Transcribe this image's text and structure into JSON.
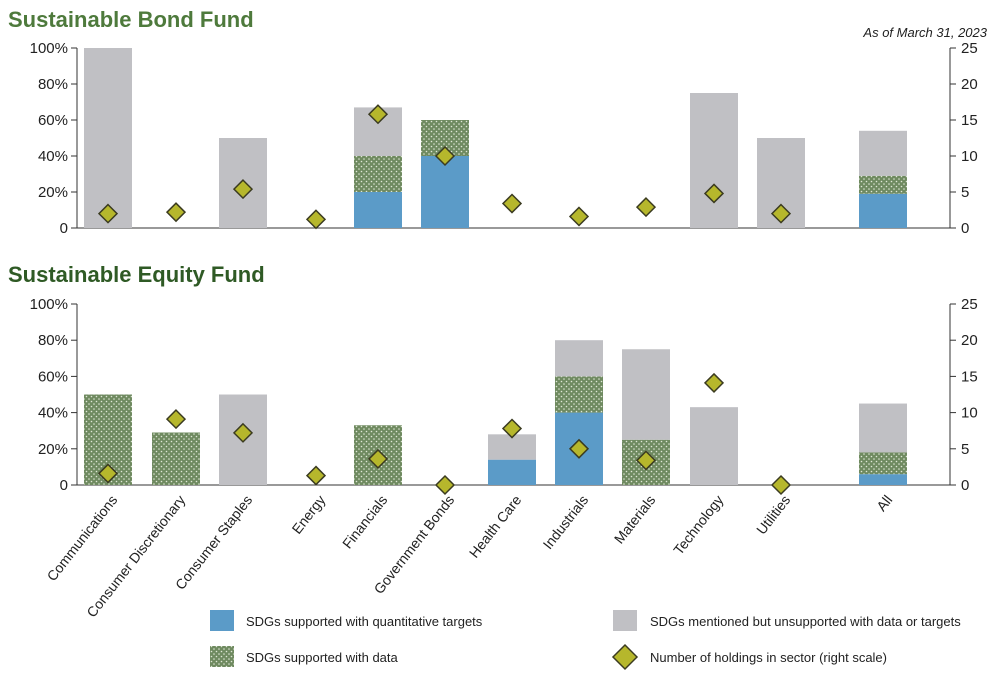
{
  "as_of": "As of March 31, 2023",
  "colors": {
    "quantitative": "#5b9bc8",
    "data": "#6f8a60",
    "data_dots": "#dfe7d6",
    "mentioned": "#c0c0c4",
    "marker": "#b6b72c",
    "marker_stroke": "#3b3b20",
    "bond_title": "#4e7a3c",
    "equity_title": "#2f5a25"
  },
  "categories": [
    "Communications",
    "Consumer Discretionary",
    "Consumer Staples",
    "Energy",
    "Financials",
    "Government Bonds",
    "Health Care",
    "Industrials",
    "Materials",
    "Technology",
    "Utilities",
    "All"
  ],
  "legend": {
    "quantitative": "SDGs supported with quantitative targets",
    "data": "SDGs supported with data",
    "mentioned": "SDGs mentioned but unsupported with data or targets",
    "holdings": "Number of holdings in sector (right scale)"
  },
  "chart_data": [
    {
      "type": "bar",
      "title": "Sustainable Bond Fund",
      "stacked": true,
      "left_axis": {
        "ticks": [
          "0",
          "20%",
          "40%",
          "60%",
          "80%",
          "100%"
        ],
        "ylim": [
          0,
          100
        ]
      },
      "right_axis": {
        "ticks": [
          "0",
          "5",
          "10",
          "15",
          "20",
          "25"
        ],
        "ylim": [
          0,
          25
        ]
      },
      "series": [
        {
          "name": "SDGs supported with quantitative targets",
          "values": [
            0,
            0,
            0,
            0,
            20,
            40,
            0,
            0,
            0,
            0,
            0,
            19
          ]
        },
        {
          "name": "SDGs supported with data",
          "values": [
            0,
            0,
            0,
            0,
            20,
            20,
            0,
            0,
            0,
            0,
            0,
            10
          ]
        },
        {
          "name": "SDGs mentioned but unsupported with data or targets",
          "values": [
            100,
            0,
            50,
            0,
            27,
            0,
            0,
            0,
            0,
            75,
            50,
            25
          ]
        }
      ],
      "holdings": [
        2,
        2.2,
        5.4,
        1.2,
        15.8,
        10,
        3.4,
        1.6,
        2.9,
        4.8,
        2,
        null
      ]
    },
    {
      "type": "bar",
      "title": "Sustainable Equity Fund",
      "stacked": true,
      "left_axis": {
        "ticks": [
          "0",
          "20%",
          "40%",
          "60%",
          "80%",
          "100%"
        ],
        "ylim": [
          0,
          100
        ]
      },
      "right_axis": {
        "ticks": [
          "0",
          "5",
          "10",
          "15",
          "20",
          "25"
        ],
        "ylim": [
          0,
          25
        ]
      },
      "series": [
        {
          "name": "SDGs supported with quantitative targets",
          "values": [
            0,
            0,
            0,
            0,
            0,
            0,
            14,
            40,
            0,
            0,
            0,
            6
          ]
        },
        {
          "name": "SDGs supported with data",
          "values": [
            50,
            29,
            0,
            0,
            33,
            0,
            0,
            20,
            25,
            0,
            0,
            12
          ]
        },
        {
          "name": "SDGs mentioned but unsupported with data or targets",
          "values": [
            0,
            0,
            50,
            0,
            0,
            0,
            14,
            20,
            50,
            43,
            0,
            27
          ]
        }
      ],
      "holdings": [
        1.6,
        9.1,
        7.2,
        1.3,
        3.6,
        0,
        7.8,
        5,
        3.4,
        14.1,
        0,
        null
      ]
    }
  ]
}
